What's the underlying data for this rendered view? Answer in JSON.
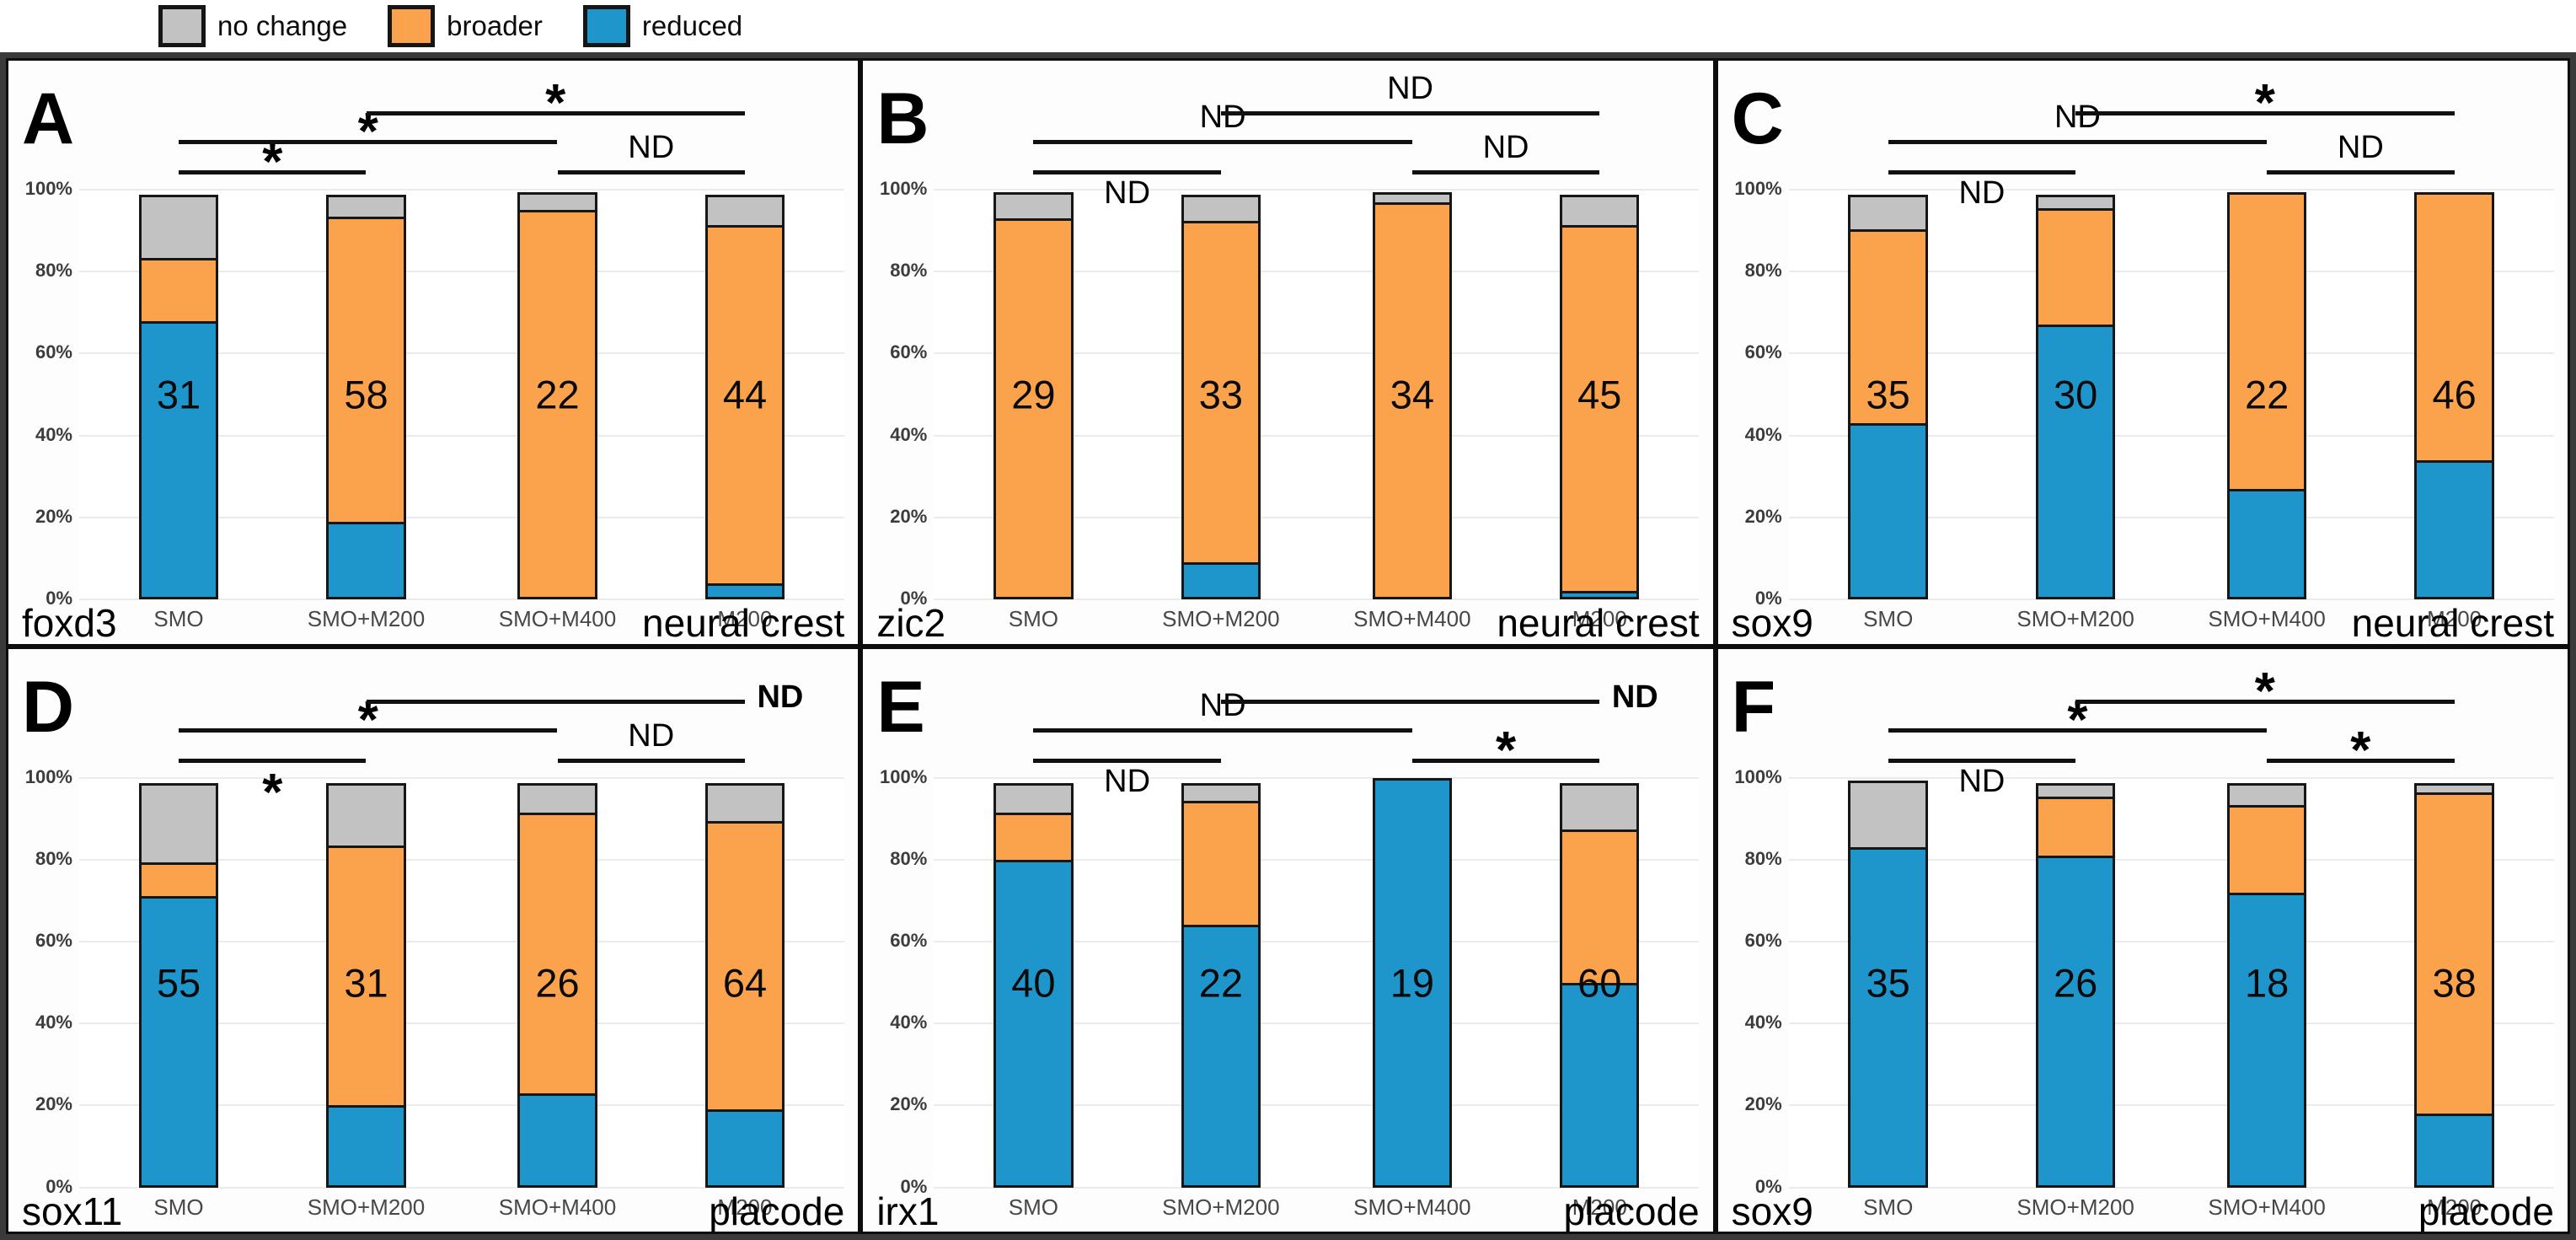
{
  "legend": {
    "items": [
      {
        "label": "no change",
        "color": "#C2C2C2"
      },
      {
        "label": "broader",
        "color": "#FBA24C"
      },
      {
        "label": "reduced",
        "color": "#1E95CB"
      }
    ]
  },
  "colors": {
    "no_change": "#C2C2C2",
    "broader": "#FBA24C",
    "reduced": "#1E95CB",
    "bar_border": "#161616",
    "gridline": "#EBEBEB",
    "panel_border": "#0D0D0D",
    "figure_border": "#3A3A3A"
  },
  "chart_data": {
    "type": "bar",
    "stacked": true,
    "unit": "percent",
    "ylim": [
      0,
      100
    ],
    "grid": true,
    "y_ticks": [
      "0%",
      "20%",
      "40%",
      "60%",
      "80%",
      "100%"
    ],
    "categories": [
      "SMO",
      "SMO+M200",
      "SMO+M400",
      "M200"
    ],
    "series_order_bottom_to_top": [
      "reduced",
      "broader",
      "no change"
    ],
    "legend_position": "top-left",
    "panels": [
      {
        "letter": "A",
        "gene": "foxd3",
        "tissue": "neural crest",
        "counts": [
          "31",
          "58",
          "22",
          "44"
        ],
        "series": {
          "reduced": [
            68,
            19,
            0,
            4
          ],
          "broader": [
            16,
            75,
            95,
            88
          ],
          "no change": [
            16,
            6,
            5,
            8
          ]
        },
        "brackets": [
          {
            "from": 1,
            "to": 2,
            "label": "*",
            "label_pos": "above"
          },
          {
            "from": 1,
            "to": 3,
            "label": "*",
            "label_pos": "above"
          },
          {
            "from": 2,
            "to": 4,
            "label": "*",
            "label_pos": "above"
          },
          {
            "from": 3,
            "to": 4,
            "label": "ND",
            "label_pos": "above"
          }
        ]
      },
      {
        "letter": "B",
        "gene": "zic2",
        "tissue": "neural crest",
        "counts": [
          "29",
          "33",
          "34",
          "45"
        ],
        "series": {
          "reduced": [
            0,
            9,
            0,
            2
          ],
          "broader": [
            93,
            84,
            97,
            90
          ],
          "no change": [
            7,
            7,
            3,
            8
          ]
        },
        "brackets": [
          {
            "from": 1,
            "to": 2,
            "label": "ND",
            "label_pos": "below"
          },
          {
            "from": 1,
            "to": 3,
            "label": "ND",
            "label_pos": "above"
          },
          {
            "from": 2,
            "to": 4,
            "label": "ND",
            "label_pos": "above"
          },
          {
            "from": 3,
            "to": 4,
            "label": "ND",
            "label_pos": "above"
          }
        ]
      },
      {
        "letter": "C",
        "gene": "sox9",
        "tissue": "neural crest",
        "counts": [
          "35",
          "30",
          "22",
          "46"
        ],
        "series": {
          "reduced": [
            43,
            67,
            27,
            34
          ],
          "broader": [
            48,
            29,
            73,
            66
          ],
          "no change": [
            9,
            4,
            0,
            0
          ]
        },
        "brackets": [
          {
            "from": 1,
            "to": 2,
            "label": "ND",
            "label_pos": "below"
          },
          {
            "from": 1,
            "to": 3,
            "label": "ND",
            "label_pos": "above"
          },
          {
            "from": 2,
            "to": 4,
            "label": "*",
            "label_pos": "above"
          },
          {
            "from": 3,
            "to": 4,
            "label": "ND",
            "label_pos": "above"
          }
        ]
      },
      {
        "letter": "D",
        "gene": "sox11",
        "tissue": "placode",
        "counts": [
          "55",
          "31",
          "26",
          "64"
        ],
        "series": {
          "reduced": [
            71,
            20,
            23,
            19
          ],
          "broader": [
            9,
            64,
            69,
            71
          ],
          "no change": [
            20,
            16,
            8,
            10
          ]
        },
        "brackets": [
          {
            "from": 1,
            "to": 2,
            "label": "*",
            "label_pos": "below"
          },
          {
            "from": 1,
            "to": 3,
            "label": "*",
            "label_pos": "above"
          },
          {
            "from": 2,
            "to": 4,
            "label": "ND",
            "label_pos": "right"
          },
          {
            "from": 3,
            "to": 4,
            "label": "ND",
            "label_pos": "above"
          }
        ]
      },
      {
        "letter": "E",
        "gene": "irx1",
        "tissue": "placode",
        "counts": [
          "40",
          "22",
          "19",
          "60"
        ],
        "series": {
          "reduced": [
            80,
            64,
            100,
            50
          ],
          "broader": [
            12,
            31,
            0,
            38
          ],
          "no change": [
            8,
            5,
            0,
            12
          ]
        },
        "brackets": [
          {
            "from": 1,
            "to": 2,
            "label": "ND",
            "label_pos": "below"
          },
          {
            "from": 1,
            "to": 3,
            "label": "ND",
            "label_pos": "above"
          },
          {
            "from": 2,
            "to": 4,
            "label": "ND",
            "label_pos": "right"
          },
          {
            "from": 3,
            "to": 4,
            "label": "*",
            "label_pos": "above"
          }
        ]
      },
      {
        "letter": "F",
        "gene": "sox9",
        "tissue": "placode",
        "counts": [
          "35",
          "26",
          "18",
          "38"
        ],
        "series": {
          "reduced": [
            83,
            81,
            72,
            18
          ],
          "broader": [
            0,
            15,
            22,
            79
          ],
          "no change": [
            17,
            4,
            6,
            3
          ]
        },
        "brackets": [
          {
            "from": 1,
            "to": 2,
            "label": "ND",
            "label_pos": "below"
          },
          {
            "from": 1,
            "to": 3,
            "label": "*",
            "label_pos": "above"
          },
          {
            "from": 2,
            "to": 4,
            "label": "*",
            "label_pos": "above"
          },
          {
            "from": 3,
            "to": 4,
            "label": "*",
            "label_pos": "above"
          }
        ]
      }
    ]
  }
}
